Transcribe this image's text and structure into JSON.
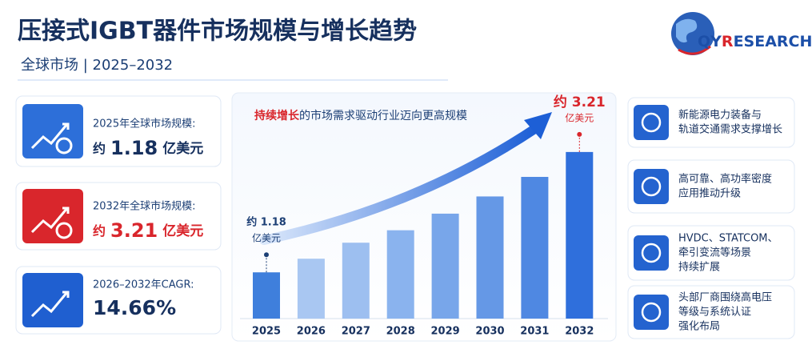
{
  "header": {
    "title": "压接式IGBT器件市场规模与增长趋势",
    "subtitle": "全球市场 | 2025–2032",
    "logo": [
      "QY",
      "R",
      "ESEARCH"
    ]
  },
  "cards": [
    {
      "label": "2025年全球市场规模:",
      "prefix": "约",
      "value": "1.18",
      "unit": "亿美元"
    },
    {
      "label": "2032年全球市场规模:",
      "prefix": "约",
      "value": "3.21",
      "unit": "亿美元"
    },
    {
      "label": "2026–2032年CAGR:",
      "value": "14.66%"
    }
  ],
  "drivers": [
    [
      "新能源电力装备与",
      "轨道交通需求支撑增长"
    ],
    [
      "高可靠、高功率密度",
      "应用推动升级"
    ],
    [
      "HVDC、STATCOM、",
      "牵引变流等场景",
      "持续扩展"
    ],
    [
      "头部厂商围绕高电压",
      "等级与系统认证",
      "强化布局"
    ]
  ],
  "chart_data": {
    "type": "bar",
    "annotation": {
      "highlight": "持续增长",
      "text": "的市场需求驱动行业迈向更高规模"
    },
    "categories": [
      "2025",
      "2026",
      "2027",
      "2028",
      "2029",
      "2030",
      "2031",
      "2032"
    ],
    "values": [
      1.18,
      1.41,
      1.68,
      1.89,
      2.17,
      2.46,
      2.79,
      3.21
    ],
    "value_labels": [
      "约 1.18",
      null,
      null,
      null,
      null,
      null,
      null,
      "约 3.21"
    ],
    "value_unit": "亿美元",
    "colors": [
      "#3f7fdc",
      "#a9c7f2",
      "#9dbff0",
      "#8ab3ee",
      "#78a6ea",
      "#6598e6",
      "#4f88e2",
      "#2f6fdc"
    ],
    "ylim": [
      0.4,
      3.6
    ]
  }
}
